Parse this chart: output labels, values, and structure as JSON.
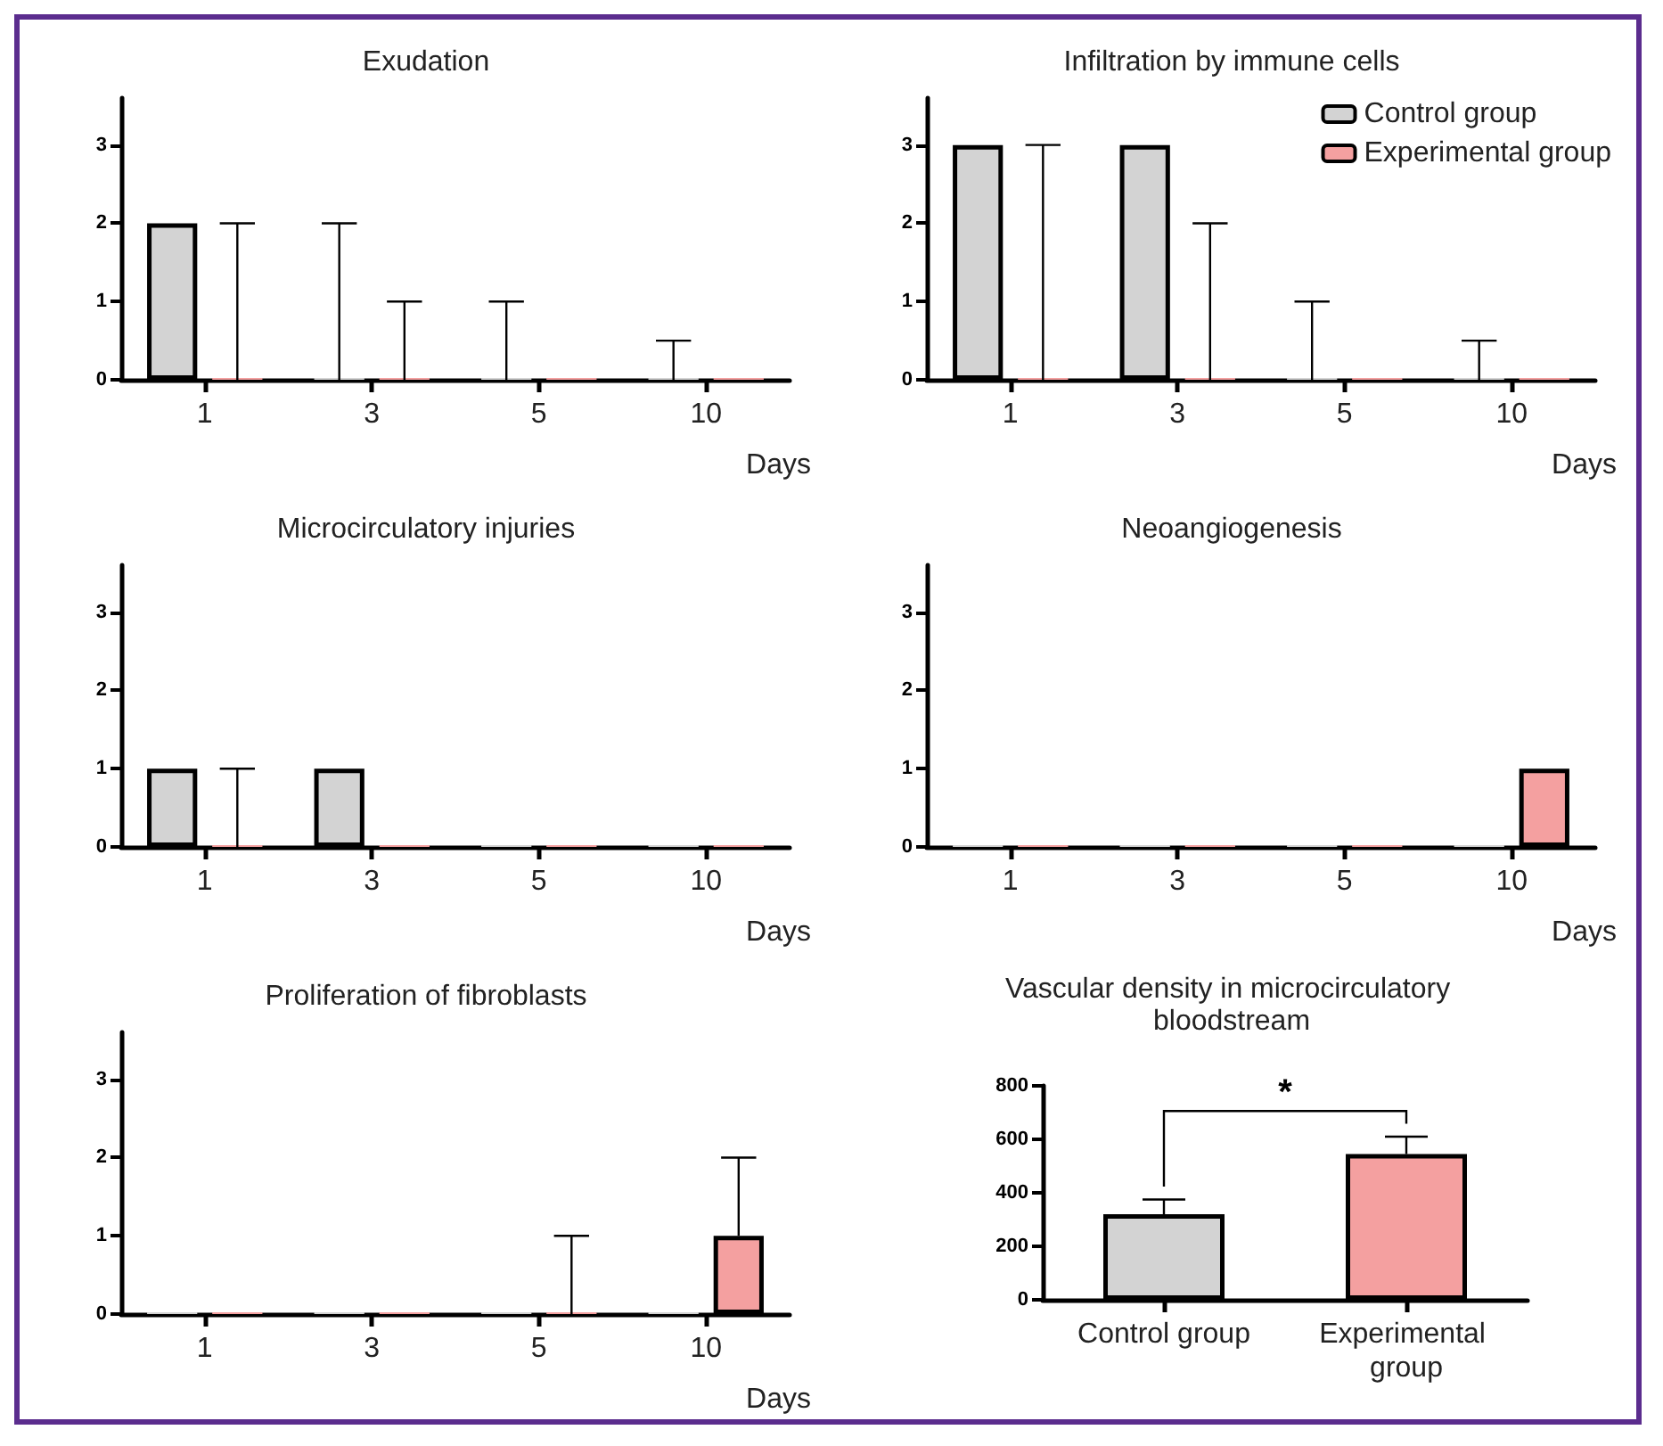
{
  "chart_data": [
    {
      "type": "bar",
      "title": "Exudation",
      "xlabel": "Days",
      "categories": [
        "1",
        "3",
        "5",
        "10"
      ],
      "ylim": [
        0,
        3.6
      ],
      "yticks": [
        0,
        1,
        2,
        3
      ],
      "series": [
        {
          "color": "#d3d3d3",
          "values": [
            2,
            0,
            0,
            0
          ],
          "errors": [
            null,
            [
              0,
              2
            ],
            [
              0,
              1
            ],
            [
              0,
              0.5
            ]
          ]
        },
        {
          "color": "#f4a0a0",
          "values": [
            0,
            0,
            0,
            0
          ],
          "errors": [
            [
              0,
              2
            ],
            [
              0,
              1
            ],
            null,
            null
          ]
        }
      ]
    },
    {
      "type": "bar",
      "title": "Infiltration by immune cells",
      "xlabel": "Days",
      "categories": [
        "1",
        "3",
        "5",
        "10"
      ],
      "ylim": [
        0,
        3.6
      ],
      "yticks": [
        0,
        1,
        2,
        3
      ],
      "legend": "top right",
      "series": [
        {
          "name": "Control group",
          "color": "#d3d3d3",
          "values": [
            3,
            3,
            0,
            0
          ],
          "errors": [
            null,
            null,
            [
              0,
              1
            ],
            [
              0,
              0.5
            ]
          ]
        },
        {
          "name": "Experimental group",
          "color": "#f4a0a0",
          "values": [
            0,
            0,
            0,
            0
          ],
          "errors": [
            [
              0,
              3
            ],
            [
              0,
              2
            ],
            null,
            null
          ]
        }
      ]
    },
    {
      "type": "bar",
      "title": "Microcirculatory injuries",
      "xlabel": "Days",
      "categories": [
        "1",
        "3",
        "5",
        "10"
      ],
      "ylim": [
        0,
        3.6
      ],
      "yticks": [
        0,
        1,
        2,
        3
      ],
      "series": [
        {
          "color": "#d3d3d3",
          "values": [
            1,
            1,
            0,
            0
          ],
          "errors": [
            null,
            null,
            null,
            null
          ]
        },
        {
          "color": "#f4a0a0",
          "values": [
            0,
            0,
            0,
            0
          ],
          "errors": [
            [
              0,
              1
            ],
            null,
            null,
            null
          ]
        }
      ]
    },
    {
      "type": "bar",
      "title": "Neoangiogenesis",
      "xlabel": "Days",
      "categories": [
        "1",
        "3",
        "5",
        "10"
      ],
      "ylim": [
        0,
        3.6
      ],
      "yticks": [
        0,
        1,
        2,
        3
      ],
      "series": [
        {
          "color": "#d3d3d3",
          "values": [
            0,
            0,
            0,
            0
          ]
        },
        {
          "color": "#f4a0a0",
          "values": [
            0,
            0,
            0,
            1
          ]
        }
      ]
    },
    {
      "type": "bar",
      "title": "Proliferation of fibroblasts",
      "xlabel": "Days",
      "categories": [
        "1",
        "3",
        "5",
        "10"
      ],
      "ylim": [
        0,
        3.6
      ],
      "yticks": [
        0,
        1,
        2,
        3
      ],
      "series": [
        {
          "color": "#d3d3d3",
          "values": [
            0,
            0,
            0,
            0
          ]
        },
        {
          "color": "#f4a0a0",
          "values": [
            0,
            0,
            0,
            1
          ],
          "errors": [
            null,
            null,
            [
              0,
              1
            ],
            [
              1,
              2
            ]
          ]
        }
      ]
    },
    {
      "type": "bar",
      "title": "Vascular density in microcirculatory bloodstream",
      "categories": [
        "Control group",
        "Experimental group"
      ],
      "values": [
        320,
        545
      ],
      "colors": [
        "#d3d3d3",
        "#f4a0a0"
      ],
      "errors": [
        [
          320,
          375
        ],
        [
          545,
          610
        ]
      ],
      "ylim": [
        0,
        800
      ],
      "yticks": [
        0,
        200,
        400,
        600,
        800
      ],
      "annotations": [
        "*"
      ]
    }
  ]
}
